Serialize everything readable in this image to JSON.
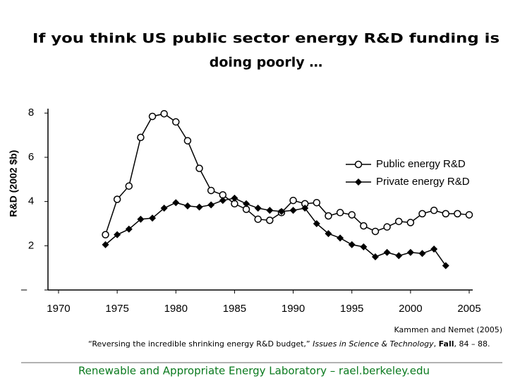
{
  "chart_data": {
    "type": "line",
    "title": [
      "If you think US public sector energy R&D funding is",
      "doing poorly …"
    ],
    "ylabel": "R&D (2002 $b)",
    "x": [
      1974,
      1975,
      1976,
      1977,
      1978,
      1979,
      1980,
      1981,
      1982,
      1983,
      1984,
      1985,
      1986,
      1987,
      1988,
      1989,
      1990,
      1991,
      1992,
      1993,
      1994,
      1995,
      1996,
      1997,
      1998,
      1999,
      2000,
      2001,
      2002,
      2003,
      2004,
      2005
    ],
    "series": [
      {
        "name": "Public energy R&D",
        "color": "#000000",
        "marker": "circle",
        "values": [
          2.5,
          4.1,
          4.7,
          6.9,
          7.85,
          7.97,
          7.6,
          6.75,
          5.5,
          4.5,
          4.3,
          3.9,
          3.65,
          3.2,
          3.15,
          3.5,
          4.05,
          3.9,
          3.95,
          3.35,
          3.5,
          3.4,
          2.9,
          2.65,
          2.85,
          3.1,
          3.05,
          3.45,
          3.6,
          3.45,
          3.45,
          3.4
        ]
      },
      {
        "name": "Private energy R&D",
        "color": "#000000",
        "marker": "diamond",
        "values": [
          2.05,
          2.5,
          2.75,
          3.2,
          3.25,
          3.7,
          3.95,
          3.8,
          3.75,
          3.85,
          4.05,
          4.15,
          3.9,
          3.7,
          3.6,
          3.55,
          3.6,
          3.7,
          3.0,
          2.55,
          2.35,
          2.05,
          1.95,
          1.5,
          1.7,
          1.55,
          1.7,
          1.65,
          1.85,
          1.1,
          null,
          null
        ]
      }
    ],
    "xlim": [
      1969.1,
      2005.3
    ],
    "xticks": [
      1970,
      1975,
      1980,
      1985,
      1990,
      1995,
      2000,
      2005
    ],
    "ylim": [
      0,
      8.2
    ],
    "yticks": [
      {
        "value": 0,
        "label": "–"
      },
      2,
      4,
      6,
      8
    ],
    "grid": false,
    "legend": "right"
  },
  "citation": {
    "source": "Kammen and Nemet (2005)",
    "parts": [
      "“Reversing the incredible shrinking energy R&D budget,” ",
      "Issues in Science & Technology",
      ", ",
      "Fall",
      ", 84 – 88."
    ]
  },
  "footer": "Renewable and Appropriate Energy Laboratory – rael.berkeley.edu"
}
